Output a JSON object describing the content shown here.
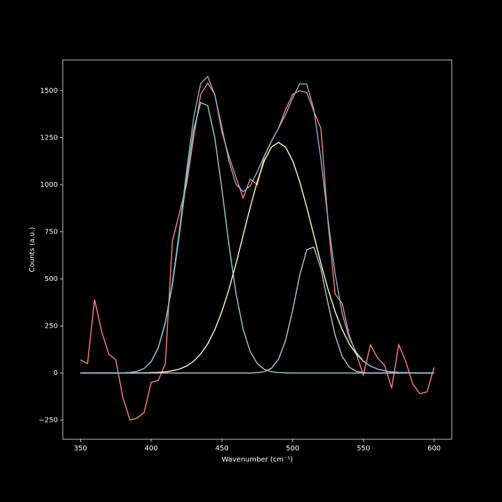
{
  "chart_data": {
    "type": "line",
    "x_label": "Wavenumber (cm⁻¹)",
    "y_label": "Counts (a.u.)",
    "x": [
      350,
      355,
      360,
      365,
      370,
      375,
      380,
      385,
      390,
      395,
      400,
      405,
      410,
      415,
      420,
      425,
      430,
      435,
      440,
      445,
      450,
      455,
      460,
      465,
      470,
      475,
      480,
      485,
      490,
      495,
      500,
      505,
      510,
      515,
      520,
      525,
      530,
      535,
      540,
      545,
      550,
      555,
      560,
      565,
      570,
      575,
      580,
      585,
      590,
      595,
      600
    ],
    "series": [
      {
        "color": "#fa8174",
        "values": [
          70,
          50,
          390,
          220,
          100,
          70,
          -130,
          -250,
          -240,
          -210,
          -50,
          -40,
          50,
          700,
          850,
          1000,
          1250,
          1480,
          1540,
          1480,
          1280,
          1150,
          1040,
          930,
          1030,
          1000,
          1150,
          1230,
          1300,
          1400,
          1480,
          1500,
          1490,
          1390,
          1300,
          800,
          420,
          370,
          200,
          100,
          -10,
          150,
          80,
          40,
          -80,
          150,
          60,
          -60,
          -110,
          -100,
          30
        ]
      },
      {
        "color": "#8dd3c7",
        "values": [
          0,
          0,
          0,
          0,
          0,
          0,
          1,
          3,
          8,
          24,
          59,
          132,
          264,
          468,
          738,
          1035,
          1293,
          1437,
          1420,
          1248,
          977,
          680,
          421,
          232,
          114,
          50,
          19,
          7,
          2,
          1,
          0,
          0,
          0,
          0,
          0,
          0,
          0,
          0,
          0,
          0,
          0,
          0,
          0,
          0,
          0,
          0,
          0,
          0,
          0,
          0,
          0
        ]
      },
      {
        "color": "#feffb3",
        "values": [
          0,
          0,
          0,
          0,
          0,
          0,
          0,
          0,
          0,
          1,
          2,
          3,
          6,
          12,
          21,
          37,
          62,
          101,
          155,
          230,
          327,
          445,
          582,
          731,
          880,
          1017,
          1128,
          1200,
          1225,
          1200,
          1128,
          1017,
          880,
          731,
          582,
          445,
          327,
          230,
          155,
          101,
          62,
          37,
          21,
          12,
          6,
          3,
          2,
          1,
          0,
          0,
          0
        ]
      },
      {
        "color": "#bfbbd9",
        "values": [
          0,
          0,
          0,
          0,
          0,
          0,
          0,
          0,
          0,
          0,
          0,
          0,
          0,
          0,
          0,
          0,
          0,
          0,
          0,
          0,
          0,
          0,
          0,
          0,
          0,
          2,
          7,
          25,
          73,
          173,
          333,
          519,
          655,
          669,
          553,
          370,
          201,
          88,
          31,
          9,
          2,
          0,
          0,
          0,
          0,
          0,
          0,
          0,
          0,
          0,
          0
        ]
      },
      {
        "color": "#81b1d2",
        "values": [
          0,
          0,
          0,
          0,
          0,
          0,
          1,
          3,
          9,
          24,
          61,
          135,
          270,
          480,
          759,
          1072,
          1355,
          1538,
          1575,
          1478,
          1304,
          1125,
          1003,
          963,
          994,
          1069,
          1154,
          1232,
          1300,
          1374,
          1461,
          1536,
          1535,
          1400,
          1135,
          815,
          528,
          318,
          186,
          110,
          64,
          37,
          21,
          12,
          6,
          3,
          2,
          1,
          0,
          0,
          0
        ]
      }
    ],
    "xlim": [
      337.5,
      612.5
    ],
    "xticks": [
      350,
      400,
      450,
      500,
      550,
      600
    ],
    "ylim": [
      -352,
      1663
    ],
    "yticks": [
      {
        "value": -250,
        "label": "−250"
      },
      0,
      250,
      500,
      750,
      1000,
      1250,
      1500
    ]
  }
}
